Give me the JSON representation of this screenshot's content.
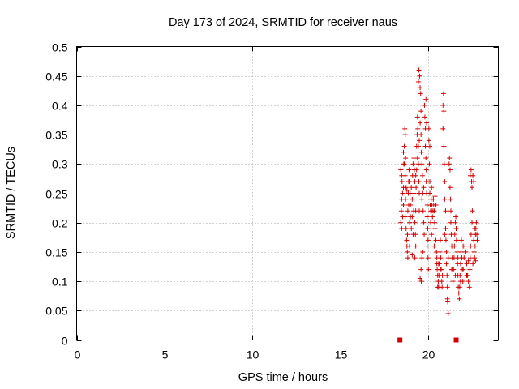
{
  "chart_data": {
    "type": "scatter",
    "title": "Day 173 of 2024, SRMTID for receiver naus",
    "xlabel": "GPS time / hours",
    "ylabel": "SRMTID / TECUs",
    "xlim": [
      0,
      24
    ],
    "ylim": [
      0,
      0.5
    ],
    "xticks": [
      "0",
      "5",
      "10",
      "15",
      "20"
    ],
    "yticks": [
      "0",
      "0.05",
      "0.1",
      "0.15",
      "0.2",
      "0.25",
      "0.3",
      "0.35",
      "0.4",
      "0.45",
      "0.5"
    ],
    "xtick_values": [
      0,
      5,
      10,
      15,
      20
    ],
    "ytick_values": [
      0,
      0.05,
      0.1,
      0.15,
      0.2,
      0.25,
      0.3,
      0.35,
      0.4,
      0.45,
      0.5
    ],
    "grid": true,
    "marker": "plus",
    "color": "#d40000",
    "zero_markers": [
      18.4,
      21.6
    ],
    "series": [
      {
        "name": "SRMTID",
        "points": [
          [
            18.45,
            0.29
          ],
          [
            18.5,
            0.28
          ],
          [
            18.52,
            0.27
          ],
          [
            18.55,
            0.25
          ],
          [
            18.5,
            0.24
          ],
          [
            18.48,
            0.22
          ],
          [
            18.45,
            0.2
          ],
          [
            18.5,
            0.19
          ],
          [
            18.55,
            0.21
          ],
          [
            18.6,
            0.23
          ],
          [
            18.6,
            0.26
          ],
          [
            18.62,
            0.3
          ],
          [
            18.65,
            0.33
          ],
          [
            18.68,
            0.36
          ],
          [
            18.7,
            0.35
          ],
          [
            18.72,
            0.31
          ],
          [
            18.7,
            0.28
          ],
          [
            18.75,
            0.26
          ],
          [
            18.72,
            0.24
          ],
          [
            18.7,
            0.21
          ],
          [
            18.75,
            0.19
          ],
          [
            18.78,
            0.17
          ],
          [
            18.8,
            0.16
          ],
          [
            18.82,
            0.15
          ],
          [
            18.85,
            0.14
          ],
          [
            18.83,
            0.18
          ],
          [
            18.85,
            0.22
          ],
          [
            18.88,
            0.25
          ],
          [
            18.9,
            0.27
          ],
          [
            18.92,
            0.29
          ],
          [
            18.95,
            0.27
          ],
          [
            18.98,
            0.25
          ],
          [
            19.0,
            0.23
          ],
          [
            19.0,
            0.21
          ],
          [
            18.95,
            0.2
          ],
          [
            19.05,
            0.19
          ],
          [
            19.1,
            0.21
          ],
          [
            19.1,
            0.24
          ],
          [
            19.12,
            0.28
          ],
          [
            19.15,
            0.3
          ],
          [
            19.2,
            0.31
          ],
          [
            19.22,
            0.29
          ],
          [
            19.25,
            0.27
          ],
          [
            19.2,
            0.25
          ],
          [
            19.18,
            0.22
          ],
          [
            19.25,
            0.2
          ],
          [
            19.28,
            0.18
          ],
          [
            19.3,
            0.16
          ],
          [
            19.3,
            0.22
          ],
          [
            19.32,
            0.26
          ],
          [
            19.35,
            0.29
          ],
          [
            19.35,
            0.33
          ],
          [
            19.38,
            0.35
          ],
          [
            19.4,
            0.38
          ],
          [
            19.42,
            0.36
          ],
          [
            19.45,
            0.33
          ],
          [
            19.45,
            0.3
          ],
          [
            19.48,
            0.27
          ],
          [
            19.5,
            0.25
          ],
          [
            19.5,
            0.22
          ],
          [
            19.45,
            0.44
          ],
          [
            19.48,
            0.46
          ],
          [
            19.52,
            0.45
          ],
          [
            19.55,
            0.43
          ],
          [
            19.58,
            0.42
          ],
          [
            19.6,
            0.39
          ],
          [
            19.55,
            0.37
          ],
          [
            19.6,
            0.35
          ],
          [
            19.62,
            0.32
          ],
          [
            19.65,
            0.3
          ],
          [
            19.68,
            0.28
          ],
          [
            19.7,
            0.25
          ],
          [
            19.72,
            0.22
          ],
          [
            19.75,
            0.2
          ],
          [
            19.78,
            0.18
          ],
          [
            19.7,
            0.15
          ],
          [
            19.65,
            0.14
          ],
          [
            19.6,
            0.12
          ],
          [
            19.55,
            0.105
          ],
          [
            19.62,
            0.1
          ],
          [
            19.8,
            0.4
          ],
          [
            19.82,
            0.38
          ],
          [
            19.85,
            0.36
          ],
          [
            19.85,
            0.33
          ],
          [
            19.88,
            0.31
          ],
          [
            19.9,
            0.29
          ],
          [
            19.9,
            0.27
          ],
          [
            19.92,
            0.25
          ],
          [
            19.95,
            0.23
          ],
          [
            19.95,
            0.21
          ],
          [
            19.98,
            0.19
          ],
          [
            20.0,
            0.17
          ],
          [
            20.0,
            0.14
          ],
          [
            20.02,
            0.12
          ],
          [
            19.88,
            0.41
          ],
          [
            19.92,
            0.37
          ],
          [
            20.05,
            0.34
          ],
          [
            20.08,
            0.3
          ],
          [
            20.1,
            0.27
          ],
          [
            20.1,
            0.25
          ],
          [
            20.12,
            0.23
          ],
          [
            20.15,
            0.22
          ],
          [
            20.18,
            0.24
          ],
          [
            20.2,
            0.26
          ],
          [
            20.22,
            0.23
          ],
          [
            20.25,
            0.21
          ],
          [
            20.28,
            0.22
          ],
          [
            20.3,
            0.24
          ],
          [
            20.32,
            0.23
          ],
          [
            20.35,
            0.22
          ],
          [
            20.38,
            0.2
          ],
          [
            20.4,
            0.19
          ],
          [
            20.15,
            0.2
          ],
          [
            20.2,
            0.22
          ],
          [
            20.05,
            0.36
          ],
          [
            20.1,
            0.33
          ],
          [
            20.45,
            0.17
          ],
          [
            20.48,
            0.15
          ],
          [
            20.5,
            0.14
          ],
          [
            20.52,
            0.12
          ],
          [
            20.55,
            0.11
          ],
          [
            20.58,
            0.1
          ],
          [
            20.6,
            0.09
          ],
          [
            20.62,
            0.11
          ],
          [
            20.65,
            0.13
          ],
          [
            20.68,
            0.15
          ],
          [
            20.7,
            0.17
          ],
          [
            20.72,
            0.14
          ],
          [
            20.75,
            0.12
          ],
          [
            20.78,
            0.1
          ],
          [
            20.8,
            0.09
          ],
          [
            20.82,
            0.11
          ],
          [
            20.5,
            0.13
          ],
          [
            20.55,
            0.09
          ],
          [
            20.85,
            0.4
          ],
          [
            20.88,
            0.42
          ],
          [
            20.9,
            0.39
          ],
          [
            20.85,
            0.36
          ],
          [
            20.9,
            0.33
          ],
          [
            20.92,
            0.3
          ],
          [
            20.95,
            0.27
          ],
          [
            20.95,
            0.24
          ],
          [
            21.0,
            0.22
          ],
          [
            21.0,
            0.19
          ],
          [
            21.02,
            0.17
          ],
          [
            21.05,
            0.15
          ],
          [
            21.05,
            0.13
          ],
          [
            21.08,
            0.11
          ],
          [
            21.1,
            0.09
          ],
          [
            21.1,
            0.07
          ],
          [
            21.12,
            0.065
          ],
          [
            21.15,
            0.045
          ],
          [
            21.2,
            0.3
          ],
          [
            21.22,
            0.31
          ],
          [
            21.25,
            0.29
          ],
          [
            21.25,
            0.26
          ],
          [
            21.28,
            0.24
          ],
          [
            21.3,
            0.22
          ],
          [
            21.3,
            0.2
          ],
          [
            21.32,
            0.18
          ],
          [
            21.35,
            0.16
          ],
          [
            21.38,
            0.14
          ],
          [
            21.4,
            0.12
          ],
          [
            21.42,
            0.1
          ],
          [
            21.45,
            0.12
          ],
          [
            21.48,
            0.14
          ],
          [
            21.5,
            0.16
          ],
          [
            21.52,
            0.18
          ],
          [
            21.55,
            0.2
          ],
          [
            21.58,
            0.21
          ],
          [
            21.6,
            0.19
          ],
          [
            21.62,
            0.17
          ],
          [
            21.65,
            0.15
          ],
          [
            21.68,
            0.13
          ],
          [
            21.7,
            0.11
          ],
          [
            21.72,
            0.09
          ],
          [
            21.75,
            0.08
          ],
          [
            21.78,
            0.07
          ],
          [
            21.8,
            0.09
          ],
          [
            21.82,
            0.11
          ],
          [
            21.85,
            0.13
          ],
          [
            21.88,
            0.15
          ],
          [
            21.9,
            0.17
          ],
          [
            21.92,
            0.14
          ],
          [
            21.95,
            0.12
          ],
          [
            21.98,
            0.1
          ],
          [
            22.0,
            0.12
          ],
          [
            22.05,
            0.14
          ],
          [
            22.1,
            0.16
          ],
          [
            22.15,
            0.15
          ],
          [
            22.2,
            0.13
          ],
          [
            22.25,
            0.11
          ],
          [
            22.3,
            0.1
          ],
          [
            22.35,
            0.09
          ],
          [
            22.38,
            0.12
          ],
          [
            22.4,
            0.14
          ],
          [
            22.42,
            0.16
          ],
          [
            22.45,
            0.18
          ],
          [
            22.5,
            0.2
          ],
          [
            22.52,
            0.22
          ],
          [
            22.4,
            0.28
          ],
          [
            22.45,
            0.29
          ],
          [
            22.48,
            0.27
          ],
          [
            22.5,
            0.26
          ],
          [
            22.55,
            0.28
          ],
          [
            22.6,
            0.27
          ],
          [
            22.6,
            0.17
          ],
          [
            22.62,
            0.15
          ],
          [
            22.65,
            0.14
          ],
          [
            22.68,
            0.16
          ],
          [
            22.7,
            0.18
          ],
          [
            22.72,
            0.19
          ],
          [
            22.75,
            0.2
          ],
          [
            22.78,
            0.18
          ],
          [
            22.8,
            0.17
          ],
          [
            22.7,
            0.135
          ],
          [
            18.6,
            0.32
          ],
          [
            18.65,
            0.3
          ],
          [
            18.9,
            0.23
          ],
          [
            19.05,
            0.26
          ],
          [
            19.15,
            0.18
          ],
          [
            19.3,
            0.28
          ],
          [
            19.4,
            0.31
          ],
          [
            19.5,
            0.34
          ],
          [
            19.65,
            0.24
          ],
          [
            19.75,
            0.26
          ],
          [
            19.95,
            0.16
          ],
          [
            20.2,
            0.18
          ],
          [
            20.35,
            0.16
          ],
          [
            20.6,
            0.13
          ],
          [
            20.7,
            0.12
          ],
          [
            20.95,
            0.18
          ],
          [
            21.15,
            0.14
          ],
          [
            21.35,
            0.12
          ],
          [
            21.55,
            0.11
          ],
          [
            21.7,
            0.14
          ],
          [
            21.85,
            0.1
          ],
          [
            22.0,
            0.16
          ],
          [
            22.2,
            0.11
          ],
          [
            22.3,
            0.135
          ],
          [
            22.55,
            0.13
          ],
          [
            22.65,
            0.19
          ],
          [
            19.1,
            0.145
          ],
          [
            19.25,
            0.14
          ],
          [
            18.95,
            0.16
          ],
          [
            18.8,
            0.255
          ],
          [
            20.4,
            0.245
          ],
          [
            20.45,
            0.23
          ]
        ]
      }
    ]
  }
}
